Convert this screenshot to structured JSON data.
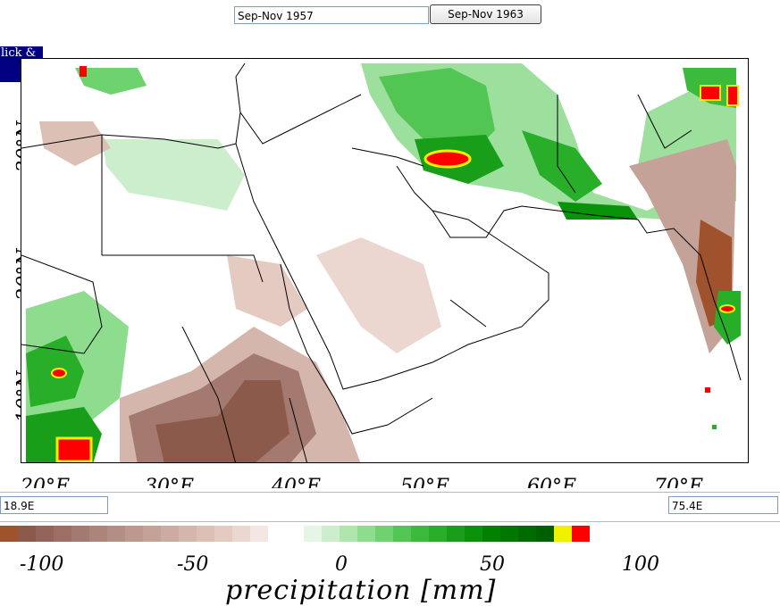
{
  "controls": {
    "period_start": "Sep-Nov 1957",
    "period_end_button": "Sep-Nov 1963",
    "click_hint": "lick &",
    "lon_left": "18.9E",
    "lon_right": "75.4E"
  },
  "map": {
    "lat_labels": [
      "30°N",
      "20°N",
      "10°N"
    ],
    "lon_labels": [
      "20°E",
      "30°E",
      "40°E",
      "50°E",
      "60°E",
      "70°E"
    ]
  },
  "legend": {
    "tick_labels": [
      "-100",
      "-50",
      "0",
      "50",
      "100"
    ],
    "unit_label": "precipitation [mm]",
    "colors": [
      "#a0522d",
      "#8c5a4a",
      "#94645a",
      "#9c6e64",
      "#a47a70",
      "#ac847a",
      "#b48e84",
      "#bc988e",
      "#c4a298",
      "#ccaca2",
      "#d4b6ac",
      "#dcc0b6",
      "#e4cac0",
      "#ecd6d0",
      "#f4e6e2",
      "#ffffff",
      "#ffffff",
      "#e6f6e6",
      "#cdeecd",
      "#aee6ae",
      "#8edc8e",
      "#6ed26e",
      "#52c652",
      "#3cba3c",
      "#28ae28",
      "#189e18",
      "#0a920a",
      "#008200",
      "#007800",
      "#006c00",
      "#006000",
      "#f0f000",
      "#ff0000"
    ]
  }
}
